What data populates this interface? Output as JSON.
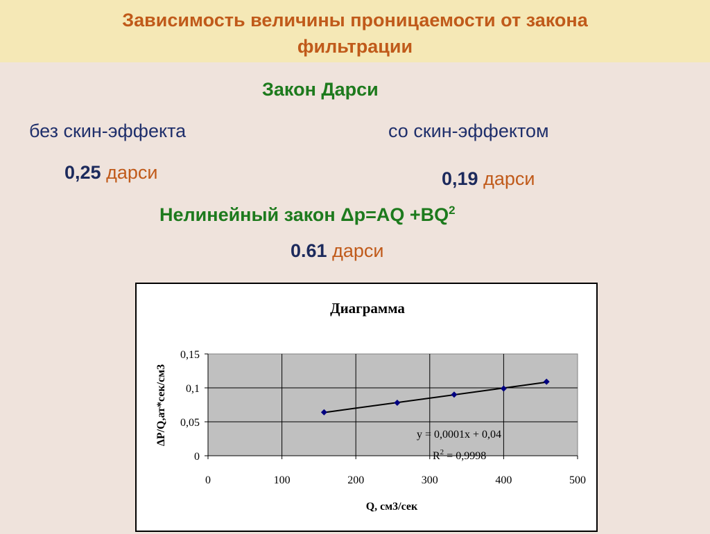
{
  "slide": {
    "title_line1": "Зависимость величины проницаемости  от закона",
    "title_line2": "фильтрации",
    "darcy_heading": "Закон Дарси",
    "without_skin_label": "без скин-эффекта",
    "with_skin_label": "со скин-эффектом",
    "without_skin_value": "0,25",
    "with_skin_value": "0,19",
    "unit": "дарси",
    "nonlinear_label": "Нелинейный закон",
    "nonlinear_formula": "Δp=AQ +BQ",
    "nonlinear_exp": "2",
    "nonlinear_value": "0.61"
  },
  "chart_data": {
    "type": "scatter",
    "title": "Диаграмма",
    "xlabel": "Q, см3/сек",
    "ylabel": "ΔP/Q,ат*сек/см3",
    "xlim": [
      0,
      500
    ],
    "ylim": [
      0,
      0.15
    ],
    "x_ticks": [
      "0",
      "100",
      "200",
      "300",
      "400",
      "500"
    ],
    "y_ticks": [
      "0",
      "0,05",
      "0,1",
      "0,15"
    ],
    "grid": true,
    "series": [
      {
        "x": [
          157,
          256,
          333,
          400,
          458
        ],
        "y": [
          0.064,
          0.078,
          0.09,
          0.099,
          0.109
        ]
      }
    ],
    "trendline": {
      "slope": 0.0001,
      "intercept": 0.04,
      "x_range": [
        157,
        458
      ]
    },
    "equation": "y = 0,0001x + 0,04",
    "r2_label": "R",
    "r2_exp": "2",
    "r2_value": " = 0,9998",
    "colors": {
      "plot_bg": "#c0c0c0",
      "marker": "#000080",
      "line": "#000000"
    }
  }
}
